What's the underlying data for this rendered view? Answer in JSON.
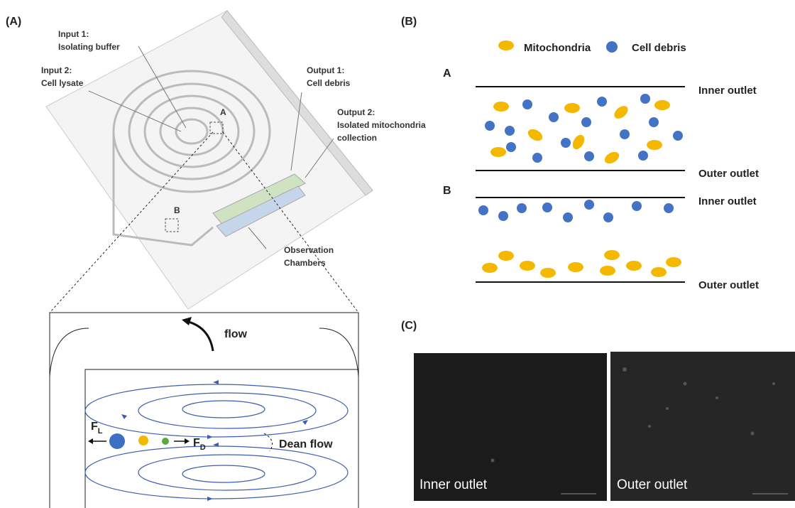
{
  "panel_a": {
    "label": "(A)",
    "input_1": {
      "title": "Input 1:",
      "text": "Isolating buffer"
    },
    "input_2": {
      "title": "Input 2:",
      "text": "Cell lysate"
    },
    "output_1": {
      "title": "Output 1:",
      "text": "Cell debris"
    },
    "output_2": {
      "title": "Output 2:",
      "lines": [
        "Isolated mitochondria",
        "collection"
      ]
    },
    "marker_a": "A",
    "marker_b": "B",
    "chambers": [
      "Observation",
      "Chambers"
    ],
    "zoom": {
      "flow": "flow",
      "fl": {
        "symbol": "F",
        "sub": "L"
      },
      "fd": {
        "symbol": "F",
        "sub": "D"
      },
      "dean": "Dean flow"
    }
  },
  "panel_b": {
    "label": "(B)",
    "legend": [
      "Mitochondria",
      "Cell debris"
    ],
    "section_a": {
      "label": "A",
      "inner": "Inner outlet",
      "outer": "Outer outlet"
    },
    "section_b": {
      "label": "B",
      "inner": "Inner outlet",
      "outer": "Outer outlet"
    }
  },
  "panel_c": {
    "label": "(C)",
    "images": [
      "Inner outlet",
      "Outer outlet"
    ]
  }
}
